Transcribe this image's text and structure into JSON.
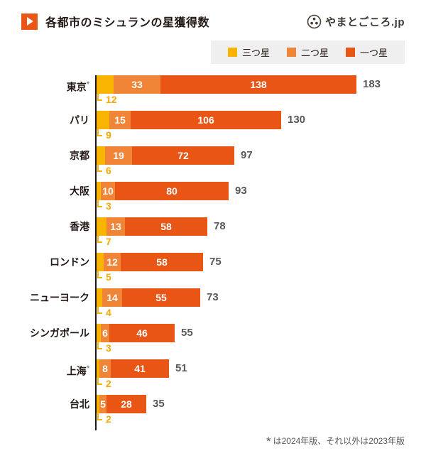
{
  "header": {
    "title": "各都市のミシュランの星獲得数",
    "logo_text": "やまとごころ.jp"
  },
  "legend": {
    "items": [
      {
        "key": "three-star",
        "label": "三つ星",
        "color": "#F8B400"
      },
      {
        "key": "two-star",
        "label": "二つ星",
        "color": "#F08437"
      },
      {
        "key": "one-star",
        "label": "一つ星",
        "color": "#E95514"
      }
    ]
  },
  "footnote": {
    "asterisk": "*",
    "text": "は2024年版、それ以外は2023年版"
  },
  "colors": {
    "accent": "#E95514",
    "three_star": "#F8B400",
    "two_star": "#F08437",
    "one_star": "#E95514",
    "total_text": "#595757",
    "axis": "#231815",
    "legend_bg": "#EFEFEF"
  },
  "chart_data": {
    "type": "bar",
    "orientation": "horizontal",
    "stacked": true,
    "title": "各都市のミシュランの星獲得数",
    "legend_position": "top-right",
    "grid": false,
    "xlim": [
      0,
      190
    ],
    "categories": [
      "東京",
      "パリ",
      "京都",
      "大阪",
      "香港",
      "ロンドン",
      "ニューヨーク",
      "シンガポール",
      "上海",
      "台北"
    ],
    "asterisk_flags": [
      true,
      false,
      false,
      false,
      false,
      false,
      false,
      false,
      true,
      false
    ],
    "series": [
      {
        "name": "三つ星",
        "values": [
          12,
          9,
          6,
          3,
          7,
          5,
          4,
          3,
          2,
          2
        ]
      },
      {
        "name": "二つ星",
        "values": [
          33,
          15,
          19,
          10,
          13,
          12,
          14,
          6,
          8,
          5
        ]
      },
      {
        "name": "一つ星",
        "values": [
          138,
          106,
          72,
          80,
          58,
          58,
          55,
          46,
          41,
          28
        ]
      }
    ],
    "totals": [
      183,
      130,
      97,
      93,
      78,
      75,
      73,
      55,
      51,
      35
    ],
    "annotation_note": "三つ星の値は各バーの下に黄色で表示"
  }
}
